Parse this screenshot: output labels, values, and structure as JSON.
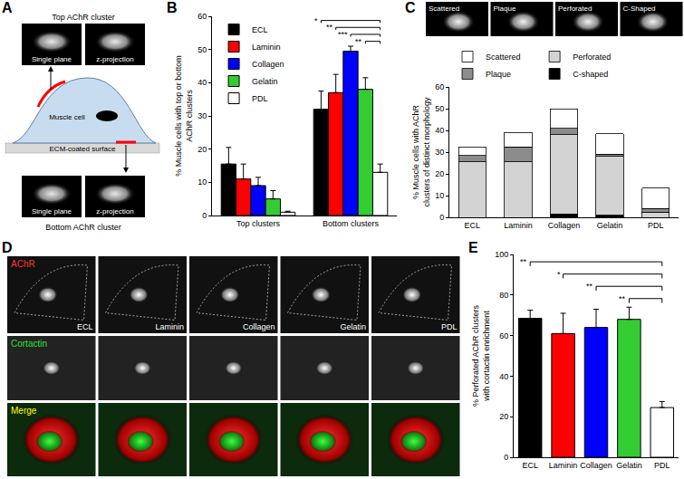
{
  "panel_labels": [
    "A",
    "B",
    "C",
    "D",
    "E"
  ],
  "panel_a": {
    "top_title": "Top AChR cluster",
    "top_images": [
      "Single plane",
      "z-projection"
    ],
    "cell_label": "Muscle cell",
    "surface_label": "ECM-coated surface",
    "bottom_title": "Bottom AChR cluster",
    "bottom_images": [
      "Single plane",
      "z-projection"
    ]
  },
  "panel_c_images": [
    "Scattered",
    "Plaque",
    "Perforated",
    "C-Shaped"
  ],
  "panel_d": {
    "rows": [
      "AChR",
      "Cortactin",
      "Merge"
    ],
    "columns": [
      "ECL",
      "Laminin",
      "Collagen",
      "Gelatin",
      "PDL"
    ]
  },
  "chart_data": [
    {
      "type": "bar",
      "ylabel": [
        "% Muscle cells with top or bottom",
        "AChR clusters"
      ],
      "categories": [
        "Top clusters",
        "Bottom clusters"
      ],
      "series": [
        {
          "name": "ECL",
          "color": "#000000",
          "values": [
            15.5,
            32
          ],
          "errors": [
            5,
            5.5
          ]
        },
        {
          "name": "Laminin",
          "color": "#ff0000",
          "values": [
            11,
            37
          ],
          "errors": [
            4.5,
            5.5
          ]
        },
        {
          "name": "Collagen",
          "color": "#0000ff",
          "values": [
            9,
            49.5
          ],
          "errors": [
            2.5,
            1.5
          ]
        },
        {
          "name": "Gelatin",
          "color": "#33cc33",
          "values": [
            5,
            38
          ],
          "errors": [
            2.5,
            3.5
          ]
        },
        {
          "name": "PDL",
          "color": "#ffffff",
          "values": [
            1,
            13
          ],
          "errors": [
            0.3,
            2.5
          ]
        }
      ],
      "ylim": [
        0,
        60
      ],
      "yticks": [
        0,
        10,
        20,
        30,
        40,
        50,
        60
      ],
      "legend": "upper left",
      "significance": [
        {
          "category": "Bottom clusters",
          "from": "ECL",
          "to": "PDL",
          "label": "*"
        },
        {
          "category": "Bottom clusters",
          "from": "Laminin",
          "to": "PDL",
          "label": "**"
        },
        {
          "category": "Bottom clusters",
          "from": "Collagen",
          "to": "PDL",
          "label": "***"
        },
        {
          "category": "Bottom clusters",
          "from": "Gelatin",
          "to": "PDL",
          "label": "**"
        }
      ]
    },
    {
      "type": "bar",
      "stacked": true,
      "ylabel": [
        "% Muscle cells with AChR",
        "clusters of distinct morphology"
      ],
      "categories": [
        "ECL",
        "Laminin",
        "Collagen",
        "Gelatin",
        "PDL"
      ],
      "series": [
        {
          "name": "C-shaped",
          "color": "#000000",
          "values": [
            0,
            0,
            1.5,
            1,
            0
          ]
        },
        {
          "name": "Perforated",
          "color": "#d3d3d3",
          "values": [
            25.5,
            25.5,
            36.5,
            27,
            2.5
          ]
        },
        {
          "name": "Plaque",
          "color": "#8c8c8c",
          "values": [
            3,
            7,
            3,
            1,
            1.5
          ]
        },
        {
          "name": "Scattered",
          "color": "#ffffff",
          "values": [
            4,
            6.5,
            9,
            9.5,
            9.5
          ]
        }
      ],
      "ylim": [
        0,
        60
      ],
      "yticks": [
        0,
        10,
        20,
        30,
        40,
        50,
        60
      ],
      "legend": "top"
    },
    {
      "type": "bar",
      "ylabel": [
        "% Perforated AChR clusters",
        "with cortactin enrichment"
      ],
      "categories": [
        "ECL",
        "Laminin",
        "Collagen",
        "Gelatin",
        "PDL"
      ],
      "values": [
        68.5,
        61,
        64,
        68,
        24.5
      ],
      "errors": [
        4,
        10,
        9,
        6,
        3
      ],
      "colors": [
        "#000000",
        "#ff0000",
        "#0000ff",
        "#33cc33",
        "#ffffff"
      ],
      "ylim": [
        0,
        100
      ],
      "yticks": [
        0,
        20,
        40,
        60,
        80,
        100
      ],
      "significance": [
        {
          "from": "ECL",
          "to": "PDL",
          "label": "**"
        },
        {
          "from": "Laminin",
          "to": "PDL",
          "label": "*"
        },
        {
          "from": "Collagen",
          "to": "PDL",
          "label": "**"
        },
        {
          "from": "Gelatin",
          "to": "PDL",
          "label": "**"
        }
      ]
    }
  ]
}
